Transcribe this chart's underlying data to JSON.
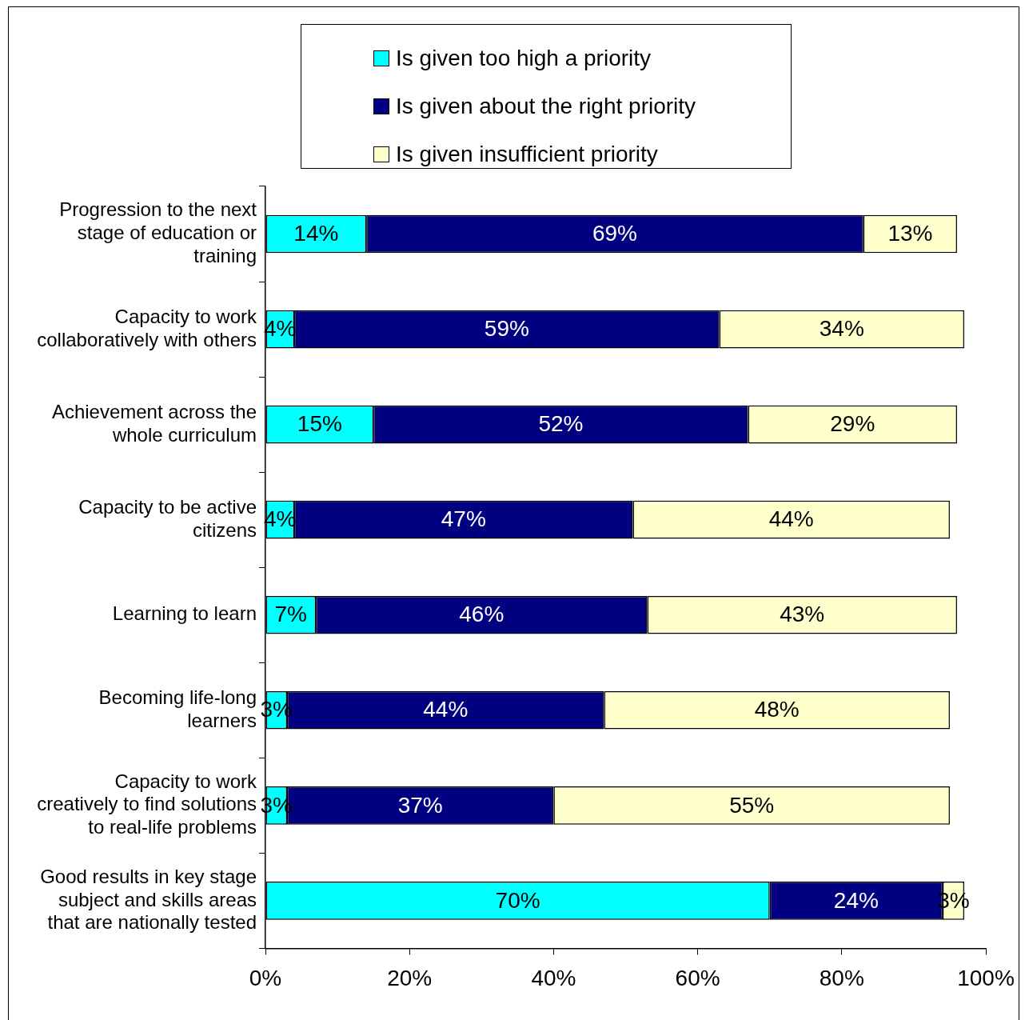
{
  "chart_data": {
    "type": "bar",
    "orientation": "horizontal",
    "stacked": true,
    "legend": "top",
    "grid": false,
    "categories": [
      "Progression to the next stage of education or training",
      "Capacity to work collaboratively with others",
      "Achievement across the whole curriculum",
      "Capacity to be active citizens",
      "Learning to learn",
      "Becoming life-long learners",
      "Capacity to work creatively to find solutions to real-life problems",
      "Good results in key stage subject and skills areas that are nationally tested"
    ],
    "series": [
      {
        "name": "Is given too high a priority",
        "color": "#00ffff",
        "values": [
          14,
          4,
          15,
          4,
          7,
          3,
          3,
          70
        ],
        "value_labels": [
          "14%",
          "4%",
          "15%",
          "4%",
          "7%",
          "3%",
          "3%",
          "70%"
        ]
      },
      {
        "name": "Is given about the right priority",
        "color": "#000080",
        "values": [
          69,
          59,
          52,
          47,
          46,
          44,
          37,
          24
        ],
        "value_labels": [
          "69%",
          "59%",
          "52%",
          "47%",
          "46%",
          "44%",
          "37%",
          "24%"
        ]
      },
      {
        "name": "Is given insufficient priority",
        "color": "#ffffcc",
        "values": [
          13,
          34,
          29,
          44,
          43,
          48,
          55,
          3
        ],
        "value_labels": [
          "13%",
          "34%",
          "29%",
          "44%",
          "43%",
          "48%",
          "55%",
          "3%"
        ]
      }
    ],
    "xlim": [
      0,
      100
    ],
    "xticks": [
      {
        "value": 0,
        "label": "0%"
      },
      {
        "value": 20,
        "label": "20%"
      },
      {
        "value": 40,
        "label": "40%"
      },
      {
        "value": 60,
        "label": "60%"
      },
      {
        "value": 80,
        "label": "80%"
      },
      {
        "value": 100,
        "label": "100%"
      }
    ]
  }
}
